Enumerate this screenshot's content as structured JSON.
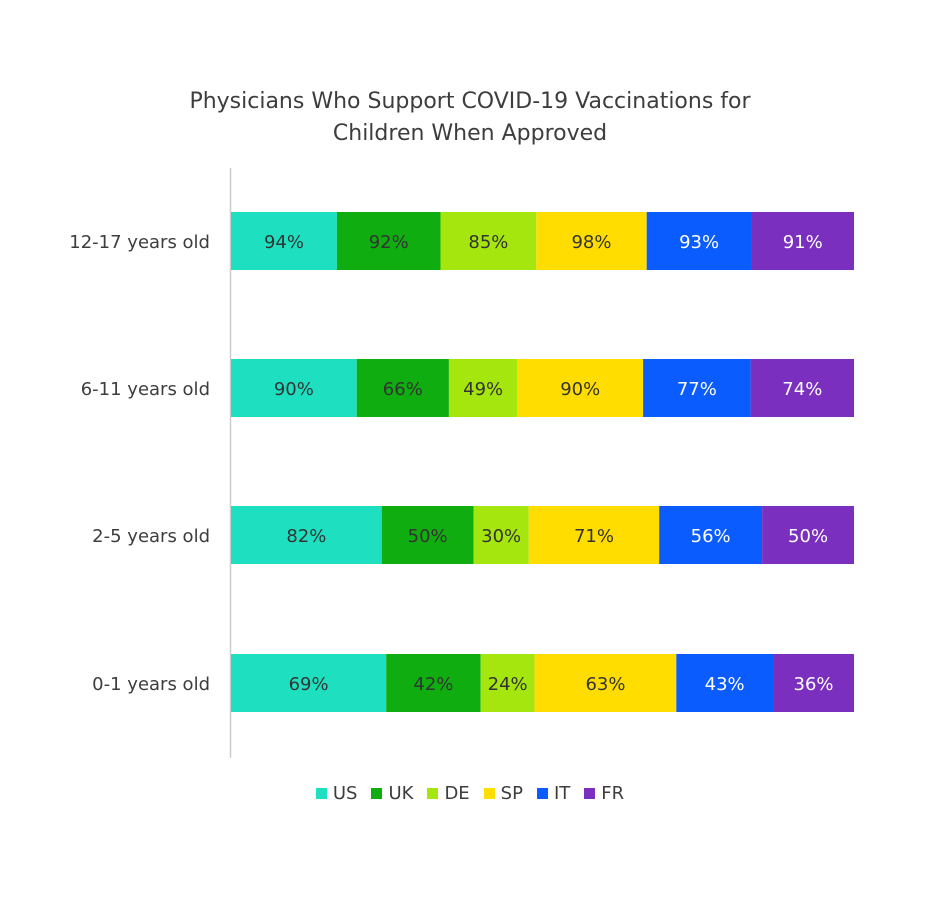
{
  "chart_data": {
    "type": "bar",
    "orientation": "horizontal",
    "stacked": true,
    "title_lines": [
      "Physicians Who Support COVID-19 Vaccinations for",
      "Children When Approved"
    ],
    "categories": [
      "12-17 years old",
      "6-11 years old",
      "2-5 years old",
      "0-1 years old"
    ],
    "series": [
      {
        "name": "US",
        "color": "#1ee0c0",
        "values": [
          94,
          90,
          82,
          69
        ]
      },
      {
        "name": "UK",
        "color": "#0fad0f",
        "values": [
          92,
          66,
          50,
          42
        ]
      },
      {
        "name": "DE",
        "color": "#a6e60f",
        "values": [
          85,
          49,
          30,
          24
        ]
      },
      {
        "name": "SP",
        "color": "#ffdd00",
        "values": [
          98,
          90,
          71,
          63
        ]
      },
      {
        "name": "IT",
        "color": "#0a5cff",
        "values": [
          93,
          77,
          56,
          43
        ]
      },
      {
        "name": "FR",
        "color": "#7b2fbf",
        "values": [
          91,
          74,
          50,
          36
        ]
      }
    ],
    "value_suffix": "%",
    "axis_line_color": "#cccccc",
    "legend_position": "bottom"
  }
}
